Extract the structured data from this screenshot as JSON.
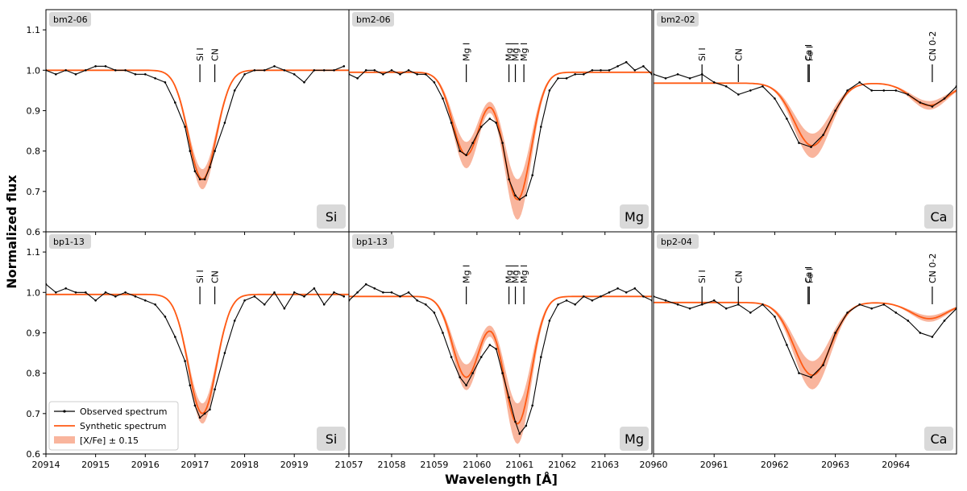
{
  "figure": {
    "ylabel": "Normalized flux",
    "xlabel": "Wavelength [Å]",
    "legend": {
      "observed": "Observed spectrum",
      "synthetic": "Synthetic spectrum",
      "band": "[X/Fe] ± 0.15"
    },
    "colors": {
      "observed": "#000000",
      "synthetic": "#ff5a14",
      "band": "#f9b59d",
      "tag": "#d9d9d9"
    }
  },
  "chart_data": [
    {
      "type": "line",
      "row": 0,
      "col": 0,
      "star": "bm2-06",
      "element": "Si",
      "xlim": [
        20914,
        20920.1
      ],
      "ylim": [
        0.6,
        1.15
      ],
      "xticks": [
        "20914",
        "20915",
        "20916",
        "20917",
        "20918",
        "20919"
      ],
      "yticks": [
        "0.6",
        "0.7",
        "0.8",
        "0.9",
        "1.0",
        "1.1"
      ],
      "lines": [
        {
          "x": 20917.1,
          "label": "Si I"
        },
        {
          "x": 20917.4,
          "label": "CN"
        }
      ],
      "continuum": 1.0,
      "features": [
        {
          "center": 20917.15,
          "depth": 0.27,
          "sigma": 0.28
        }
      ],
      "band_width": 0.025,
      "observed": [
        [
          20914.0,
          1.0
        ],
        [
          20914.2,
          0.99
        ],
        [
          20914.4,
          1.0
        ],
        [
          20914.6,
          0.99
        ],
        [
          20914.8,
          1.0
        ],
        [
          20915.0,
          1.01
        ],
        [
          20915.2,
          1.01
        ],
        [
          20915.4,
          1.0
        ],
        [
          20915.6,
          1.0
        ],
        [
          20915.8,
          0.99
        ],
        [
          20916.0,
          0.99
        ],
        [
          20916.2,
          0.98
        ],
        [
          20916.4,
          0.97
        ],
        [
          20916.6,
          0.92
        ],
        [
          20916.8,
          0.86
        ],
        [
          20916.9,
          0.8
        ],
        [
          20917.0,
          0.75
        ],
        [
          20917.1,
          0.73
        ],
        [
          20917.2,
          0.73
        ],
        [
          20917.3,
          0.76
        ],
        [
          20917.4,
          0.8
        ],
        [
          20917.6,
          0.87
        ],
        [
          20917.8,
          0.95
        ],
        [
          20918.0,
          0.99
        ],
        [
          20918.2,
          1.0
        ],
        [
          20918.4,
          1.0
        ],
        [
          20918.6,
          1.01
        ],
        [
          20918.8,
          1.0
        ],
        [
          20919.0,
          0.99
        ],
        [
          20919.2,
          0.97
        ],
        [
          20919.4,
          1.0
        ],
        [
          20919.6,
          1.0
        ],
        [
          20919.8,
          1.0
        ],
        [
          20920.0,
          1.01
        ]
      ]
    },
    {
      "type": "line",
      "row": 0,
      "col": 1,
      "star": "bm2-06",
      "element": "Mg",
      "xlim": [
        21057,
        21064.1
      ],
      "ylim": [
        0.6,
        1.15
      ],
      "xticks": [
        "21057",
        "21058",
        "21059",
        "21060",
        "21061",
        "21062",
        "21063"
      ],
      "yticks": [],
      "lines": [
        {
          "x": 21059.75,
          "label": "Mg I"
        },
        {
          "x": 21060.75,
          "label": "Mg I"
        },
        {
          "x": 21060.9,
          "label": "Mg I"
        },
        {
          "x": 21061.1,
          "label": "Mg I"
        }
      ],
      "continuum": 0.995,
      "features": [
        {
          "center": 21059.75,
          "depth": 0.205,
          "sigma": 0.32
        },
        {
          "center": 21060.95,
          "depth": 0.315,
          "sigma": 0.32
        }
      ],
      "band_width": 0.05,
      "observed": [
        [
          21057.0,
          0.99
        ],
        [
          21057.2,
          0.98
        ],
        [
          21057.4,
          1.0
        ],
        [
          21057.6,
          1.0
        ],
        [
          21057.8,
          0.99
        ],
        [
          21058.0,
          1.0
        ],
        [
          21058.2,
          0.99
        ],
        [
          21058.4,
          1.0
        ],
        [
          21058.6,
          0.99
        ],
        [
          21058.8,
          0.99
        ],
        [
          21059.0,
          0.97
        ],
        [
          21059.2,
          0.93
        ],
        [
          21059.4,
          0.87
        ],
        [
          21059.6,
          0.8
        ],
        [
          21059.75,
          0.79
        ],
        [
          21059.9,
          0.82
        ],
        [
          21060.1,
          0.86
        ],
        [
          21060.3,
          0.88
        ],
        [
          21060.45,
          0.87
        ],
        [
          21060.6,
          0.82
        ],
        [
          21060.75,
          0.73
        ],
        [
          21060.9,
          0.69
        ],
        [
          21061.0,
          0.68
        ],
        [
          21061.15,
          0.69
        ],
        [
          21061.3,
          0.74
        ],
        [
          21061.5,
          0.86
        ],
        [
          21061.7,
          0.95
        ],
        [
          21061.9,
          0.98
        ],
        [
          21062.1,
          0.98
        ],
        [
          21062.3,
          0.99
        ],
        [
          21062.5,
          0.99
        ],
        [
          21062.7,
          1.0
        ],
        [
          21062.9,
          1.0
        ],
        [
          21063.1,
          1.0
        ],
        [
          21063.3,
          1.01
        ],
        [
          21063.5,
          1.02
        ],
        [
          21063.7,
          1.0
        ],
        [
          21063.9,
          1.01
        ],
        [
          21064.1,
          0.99
        ]
      ]
    },
    {
      "type": "line",
      "row": 0,
      "col": 2,
      "star": "bm2-02",
      "element": "Ca",
      "xlim": [
        20960,
        20965.0
      ],
      "ylim": [
        0.6,
        1.15
      ],
      "xticks": [
        "20960",
        "20961",
        "20962",
        "20963",
        "20964"
      ],
      "yticks": [],
      "lines": [
        {
          "x": 20960.8,
          "label": "Si I"
        },
        {
          "x": 20961.4,
          "label": "CN"
        },
        {
          "x": 20962.55,
          "label": "Ca I"
        },
        {
          "x": 20962.57,
          "label": "Fe I"
        },
        {
          "x": 20964.6,
          "label": "CN 0-2"
        }
      ],
      "continuum": 0.968,
      "features": [
        {
          "center": 20962.62,
          "depth": 0.155,
          "sigma": 0.3
        },
        {
          "center": 20964.55,
          "depth": 0.055,
          "sigma": 0.3
        }
      ],
      "band_width": 0.03,
      "observed": [
        [
          20960.0,
          0.99
        ],
        [
          20960.2,
          0.98
        ],
        [
          20960.4,
          0.99
        ],
        [
          20960.6,
          0.98
        ],
        [
          20960.8,
          0.99
        ],
        [
          20961.0,
          0.97
        ],
        [
          20961.2,
          0.96
        ],
        [
          20961.4,
          0.94
        ],
        [
          20961.6,
          0.95
        ],
        [
          20961.8,
          0.96
        ],
        [
          20962.0,
          0.93
        ],
        [
          20962.2,
          0.88
        ],
        [
          20962.4,
          0.82
        ],
        [
          20962.6,
          0.81
        ],
        [
          20962.8,
          0.84
        ],
        [
          20963.0,
          0.9
        ],
        [
          20963.2,
          0.95
        ],
        [
          20963.4,
          0.97
        ],
        [
          20963.6,
          0.95
        ],
        [
          20963.8,
          0.95
        ],
        [
          20964.0,
          0.95
        ],
        [
          20964.2,
          0.94
        ],
        [
          20964.4,
          0.92
        ],
        [
          20964.6,
          0.91
        ],
        [
          20964.8,
          0.93
        ],
        [
          20965.0,
          0.96
        ]
      ]
    },
    {
      "type": "line",
      "row": 1,
      "col": 0,
      "star": "bp1-13",
      "element": "Si",
      "xlim": [
        20914,
        20920.1
      ],
      "ylim": [
        0.6,
        1.15
      ],
      "xticks": [
        "20914",
        "20915",
        "20916",
        "20917",
        "20918",
        "20919"
      ],
      "yticks": [
        "0.6",
        "0.7",
        "0.8",
        "0.9",
        "1.0",
        "1.1"
      ],
      "lines": [
        {
          "x": 20917.1,
          "label": "Si I"
        },
        {
          "x": 20917.4,
          "label": "CN"
        }
      ],
      "continuum": 0.995,
      "features": [
        {
          "center": 20917.15,
          "depth": 0.295,
          "sigma": 0.28
        }
      ],
      "band_width": 0.025,
      "observed": [
        [
          20914.0,
          1.02
        ],
        [
          20914.2,
          1.0
        ],
        [
          20914.4,
          1.01
        ],
        [
          20914.6,
          1.0
        ],
        [
          20914.8,
          1.0
        ],
        [
          20915.0,
          0.98
        ],
        [
          20915.2,
          1.0
        ],
        [
          20915.4,
          0.99
        ],
        [
          20915.6,
          1.0
        ],
        [
          20915.8,
          0.99
        ],
        [
          20916.0,
          0.98
        ],
        [
          20916.2,
          0.97
        ],
        [
          20916.4,
          0.94
        ],
        [
          20916.6,
          0.89
        ],
        [
          20916.8,
          0.83
        ],
        [
          20916.9,
          0.77
        ],
        [
          20917.0,
          0.72
        ],
        [
          20917.1,
          0.69
        ],
        [
          20917.2,
          0.7
        ],
        [
          20917.3,
          0.71
        ],
        [
          20917.4,
          0.76
        ],
        [
          20917.6,
          0.85
        ],
        [
          20917.8,
          0.93
        ],
        [
          20918.0,
          0.98
        ],
        [
          20918.2,
          0.99
        ],
        [
          20918.4,
          0.97
        ],
        [
          20918.6,
          1.0
        ],
        [
          20918.8,
          0.96
        ],
        [
          20919.0,
          1.0
        ],
        [
          20919.2,
          0.99
        ],
        [
          20919.4,
          1.01
        ],
        [
          20919.6,
          0.97
        ],
        [
          20919.8,
          1.0
        ],
        [
          20920.0,
          0.99
        ]
      ]
    },
    {
      "type": "line",
      "row": 1,
      "col": 1,
      "star": "bp1-13",
      "element": "Mg",
      "xlim": [
        21057,
        21064.1
      ],
      "ylim": [
        0.6,
        1.15
      ],
      "xticks": [
        "21057",
        "21058",
        "21059",
        "21060",
        "21061",
        "21062",
        "21063"
      ],
      "yticks": [],
      "lines": [
        {
          "x": 21059.75,
          "label": "Mg I"
        },
        {
          "x": 21060.75,
          "label": "Mg I"
        },
        {
          "x": 21060.9,
          "label": "Mg I"
        },
        {
          "x": 21061.1,
          "label": "Mg I"
        }
      ],
      "continuum": 0.99,
      "features": [
        {
          "center": 21059.75,
          "depth": 0.2,
          "sigma": 0.32
        },
        {
          "center": 21060.95,
          "depth": 0.315,
          "sigma": 0.32
        }
      ],
      "band_width": 0.05,
      "observed": [
        [
          21057.0,
          0.98
        ],
        [
          21057.2,
          1.0
        ],
        [
          21057.4,
          1.02
        ],
        [
          21057.6,
          1.01
        ],
        [
          21057.8,
          1.0
        ],
        [
          21058.0,
          1.0
        ],
        [
          21058.2,
          0.99
        ],
        [
          21058.4,
          1.0
        ],
        [
          21058.6,
          0.98
        ],
        [
          21058.8,
          0.97
        ],
        [
          21059.0,
          0.95
        ],
        [
          21059.2,
          0.9
        ],
        [
          21059.4,
          0.84
        ],
        [
          21059.6,
          0.79
        ],
        [
          21059.75,
          0.77
        ],
        [
          21059.9,
          0.8
        ],
        [
          21060.1,
          0.84
        ],
        [
          21060.3,
          0.87
        ],
        [
          21060.45,
          0.86
        ],
        [
          21060.6,
          0.8
        ],
        [
          21060.75,
          0.74
        ],
        [
          21060.9,
          0.68
        ],
        [
          21061.0,
          0.65
        ],
        [
          21061.15,
          0.67
        ],
        [
          21061.3,
          0.72
        ],
        [
          21061.5,
          0.84
        ],
        [
          21061.7,
          0.93
        ],
        [
          21061.9,
          0.97
        ],
        [
          21062.1,
          0.98
        ],
        [
          21062.3,
          0.97
        ],
        [
          21062.5,
          0.99
        ],
        [
          21062.7,
          0.98
        ],
        [
          21062.9,
          0.99
        ],
        [
          21063.1,
          1.0
        ],
        [
          21063.3,
          1.01
        ],
        [
          21063.5,
          1.0
        ],
        [
          21063.7,
          1.01
        ],
        [
          21063.9,
          0.99
        ],
        [
          21064.1,
          0.98
        ]
      ]
    },
    {
      "type": "line",
      "row": 1,
      "col": 2,
      "star": "bp2-04",
      "element": "Ca",
      "xlim": [
        20960,
        20965.0
      ],
      "ylim": [
        0.6,
        1.15
      ],
      "xticks": [
        "20960",
        "20961",
        "20962",
        "20963",
        "20964"
      ],
      "yticks": [],
      "lines": [
        {
          "x": 20960.8,
          "label": "Si I"
        },
        {
          "x": 20961.4,
          "label": "CN"
        },
        {
          "x": 20962.55,
          "label": "Ca I"
        },
        {
          "x": 20962.57,
          "label": "Fe I"
        },
        {
          "x": 20964.6,
          "label": "CN 0-2"
        }
      ],
      "continuum": 0.975,
      "features": [
        {
          "center": 20962.62,
          "depth": 0.18,
          "sigma": 0.3
        },
        {
          "center": 20964.55,
          "depth": 0.04,
          "sigma": 0.3
        }
      ],
      "band_width": 0.035,
      "observed": [
        [
          20960.0,
          0.99
        ],
        [
          20960.2,
          0.98
        ],
        [
          20960.4,
          0.97
        ],
        [
          20960.6,
          0.96
        ],
        [
          20960.8,
          0.97
        ],
        [
          20961.0,
          0.98
        ],
        [
          20961.2,
          0.96
        ],
        [
          20961.4,
          0.97
        ],
        [
          20961.6,
          0.95
        ],
        [
          20961.8,
          0.97
        ],
        [
          20962.0,
          0.94
        ],
        [
          20962.2,
          0.87
        ],
        [
          20962.4,
          0.8
        ],
        [
          20962.6,
          0.79
        ],
        [
          20962.8,
          0.82
        ],
        [
          20963.0,
          0.9
        ],
        [
          20963.2,
          0.95
        ],
        [
          20963.4,
          0.97
        ],
        [
          20963.6,
          0.96
        ],
        [
          20963.8,
          0.97
        ],
        [
          20964.0,
          0.95
        ],
        [
          20964.2,
          0.93
        ],
        [
          20964.4,
          0.9
        ],
        [
          20964.6,
          0.89
        ],
        [
          20964.8,
          0.93
        ],
        [
          20965.0,
          0.96
        ]
      ]
    }
  ]
}
